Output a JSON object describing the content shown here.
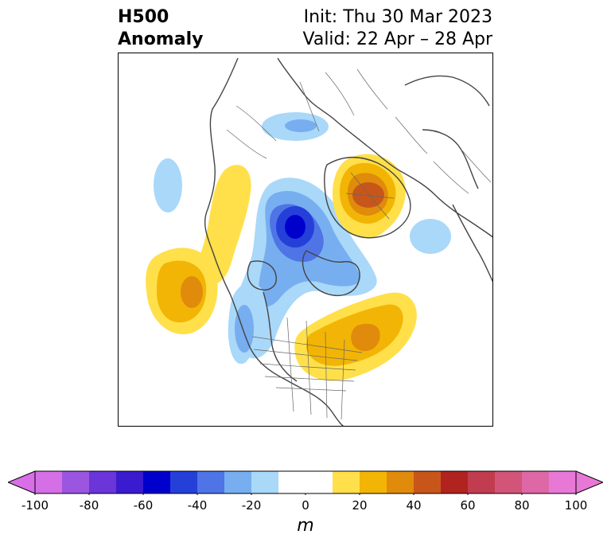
{
  "title": {
    "line1": "H500",
    "line2": "Anomaly",
    "init": "Init: Thu 30 Mar 2023",
    "valid": "Valid: 22 Apr – 28 Apr"
  },
  "colorbar": {
    "unit": "m",
    "ticks": [
      "-100",
      "-80",
      "-60",
      "-40",
      "-20",
      "0",
      "20",
      "40",
      "60",
      "80",
      "100"
    ],
    "levels": [
      -100,
      -90,
      -80,
      -70,
      -60,
      -50,
      -40,
      -30,
      -20,
      -10,
      10,
      20,
      30,
      40,
      50,
      60,
      70,
      80,
      90,
      100
    ],
    "colors": [
      "#d46fe6",
      "#9c55e0",
      "#6a35d9",
      "#3a1bd0",
      "#0000cc",
      "#2540d8",
      "#4f74e6",
      "#77aef0",
      "#a9d8f9",
      "#ffffff",
      "#ffe04a",
      "#f2b505",
      "#e08b0b",
      "#c8561a",
      "#b0231f",
      "#c23c50",
      "#d25479",
      "#de68a6",
      "#e878d6"
    ],
    "under_color": "#d86ee8",
    "over_color": "#e878d6"
  },
  "anomalies": [
    {
      "name": "negative anomaly over Arctic Ocean north of Russia",
      "value": -15
    },
    {
      "name": "weak negative anomaly near Siberia",
      "value": -15
    },
    {
      "name": "strong negative anomaly near North Pole",
      "value": -65
    },
    {
      "name": "negative anomaly over Hudson Bay",
      "value": -35
    },
    {
      "name": "positive anomaly over Greenland",
      "value": 45
    },
    {
      "name": "positive anomaly over northeast Pacific",
      "value": 35
    },
    {
      "name": "positive anomaly over eastern Canada and northeast US",
      "value": 35
    },
    {
      "name": "positive anomaly over Alaska and Bering Strait",
      "value": 15
    }
  ]
}
